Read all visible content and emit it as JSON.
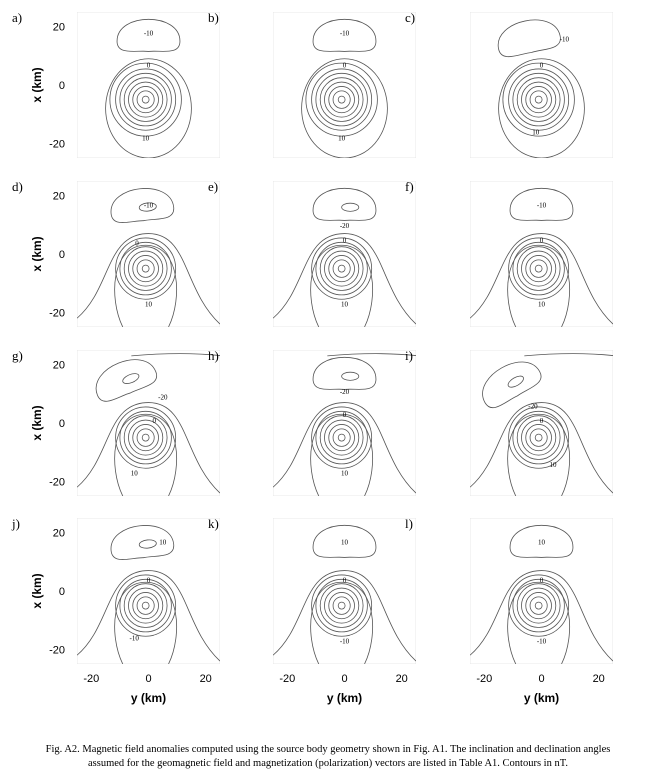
{
  "figure": {
    "panels": [
      {
        "label": "a)",
        "contours": [
          "-10",
          "0",
          "10"
        ]
      },
      {
        "label": "b)",
        "contours": [
          "-10",
          "0",
          "10"
        ]
      },
      {
        "label": "c)",
        "contours": [
          "-10",
          "0",
          "10"
        ]
      },
      {
        "label": "d)",
        "contours": [
          "-10",
          "0",
          "10"
        ]
      },
      {
        "label": "e)",
        "contours": [
          "-20",
          "0",
          "10"
        ]
      },
      {
        "label": "f)",
        "contours": [
          "-10",
          "0",
          "10"
        ]
      },
      {
        "label": "g)",
        "contours": [
          "-20",
          "0",
          "10"
        ]
      },
      {
        "label": "h)",
        "contours": [
          "-20",
          "0",
          "10"
        ]
      },
      {
        "label": "i)",
        "contours": [
          "-20",
          "0",
          "10"
        ]
      },
      {
        "label": "j)",
        "contours": [
          "10",
          "0",
          "-10"
        ]
      },
      {
        "label": "k)",
        "contours": [
          "10",
          "0",
          "-10"
        ]
      },
      {
        "label": "l)",
        "contours": [
          "10",
          "0",
          "-10"
        ]
      }
    ],
    "vertical_axis_label": "x (km)",
    "vertical_ticks": [
      "20",
      "0",
      "-20"
    ],
    "horizontal_axis_label": "y (km)",
    "horizontal_ticks": [
      "-20",
      "0",
      "20"
    ]
  },
  "caption": [
    "Fig. A2. Magnetic field anomalies computed using the source body geometry shown in Fig. A1. The inclination and declination angles",
    "assumed for the geomagnetic field and magnetization (polarization) vectors are listed in Table A1. Contours in nT."
  ]
}
